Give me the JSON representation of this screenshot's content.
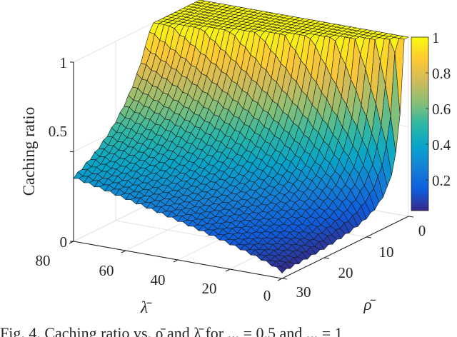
{
  "chart_data": {
    "type": "surface3d",
    "title": "",
    "zlabel": "Caching ratio",
    "xlabel": "λ̄",
    "ylabel": "ρ̄",
    "x_axis": {
      "name": "lambda_bar",
      "range": [
        0,
        80
      ],
      "ticks": [
        0,
        20,
        40,
        60,
        80
      ]
    },
    "y_axis": {
      "name": "rho_bar",
      "range": [
        0,
        30
      ],
      "ticks": [
        0,
        10,
        20,
        30
      ]
    },
    "z_axis": {
      "name": "caching_ratio",
      "range": [
        0,
        1
      ],
      "ticks": [
        0,
        0.5,
        1
      ],
      "tick_labels": [
        "0",
        "0.5",
        "1"
      ]
    },
    "colorbar": {
      "range": [
        0.03,
        1
      ],
      "ticks": [
        0.2,
        0.4,
        0.6,
        0.8,
        1
      ],
      "tick_labels": [
        "0.2",
        "0.4",
        "0.6",
        "0.8",
        "1"
      ],
      "colormap": "parula"
    },
    "grid": true,
    "description": "Caching ratio saturates at 1 for small rho_bar and decreases as rho_bar grows; larger lambda_bar yields higher ratio.",
    "sample_points": [
      {
        "lambda_bar": 80,
        "rho_bar": 30,
        "ratio": 0.35
      },
      {
        "lambda_bar": 80,
        "rho_bar": 6,
        "ratio": 1.0
      },
      {
        "lambda_bar": 40,
        "rho_bar": 30,
        "ratio": 0.2
      },
      {
        "lambda_bar": 0,
        "rho_bar": 30,
        "ratio": 0.03
      },
      {
        "lambda_bar": 0,
        "rho_bar": 2,
        "ratio": 1.0
      }
    ],
    "grid_size": {
      "lambda_steps": 40,
      "rho_steps": 30
    }
  },
  "axes": {
    "zlabel": "Caching ratio",
    "lambda_label": "λ̄",
    "rho_label": "ρ̄",
    "z_ticks": [
      "1",
      "0.5",
      "0"
    ],
    "lambda_ticks": [
      "80",
      "60",
      "40",
      "20",
      "0"
    ],
    "rho_ticks": [
      "0",
      "10",
      "20",
      "30"
    ],
    "colorbar_ticks": [
      "1",
      "0.8",
      "0.6",
      "0.4",
      "0.2"
    ]
  },
  "caption": "Fig. 4. Caching ratio vs. ρ̄ and λ̄ for ... = 0.5 and ... = 1"
}
